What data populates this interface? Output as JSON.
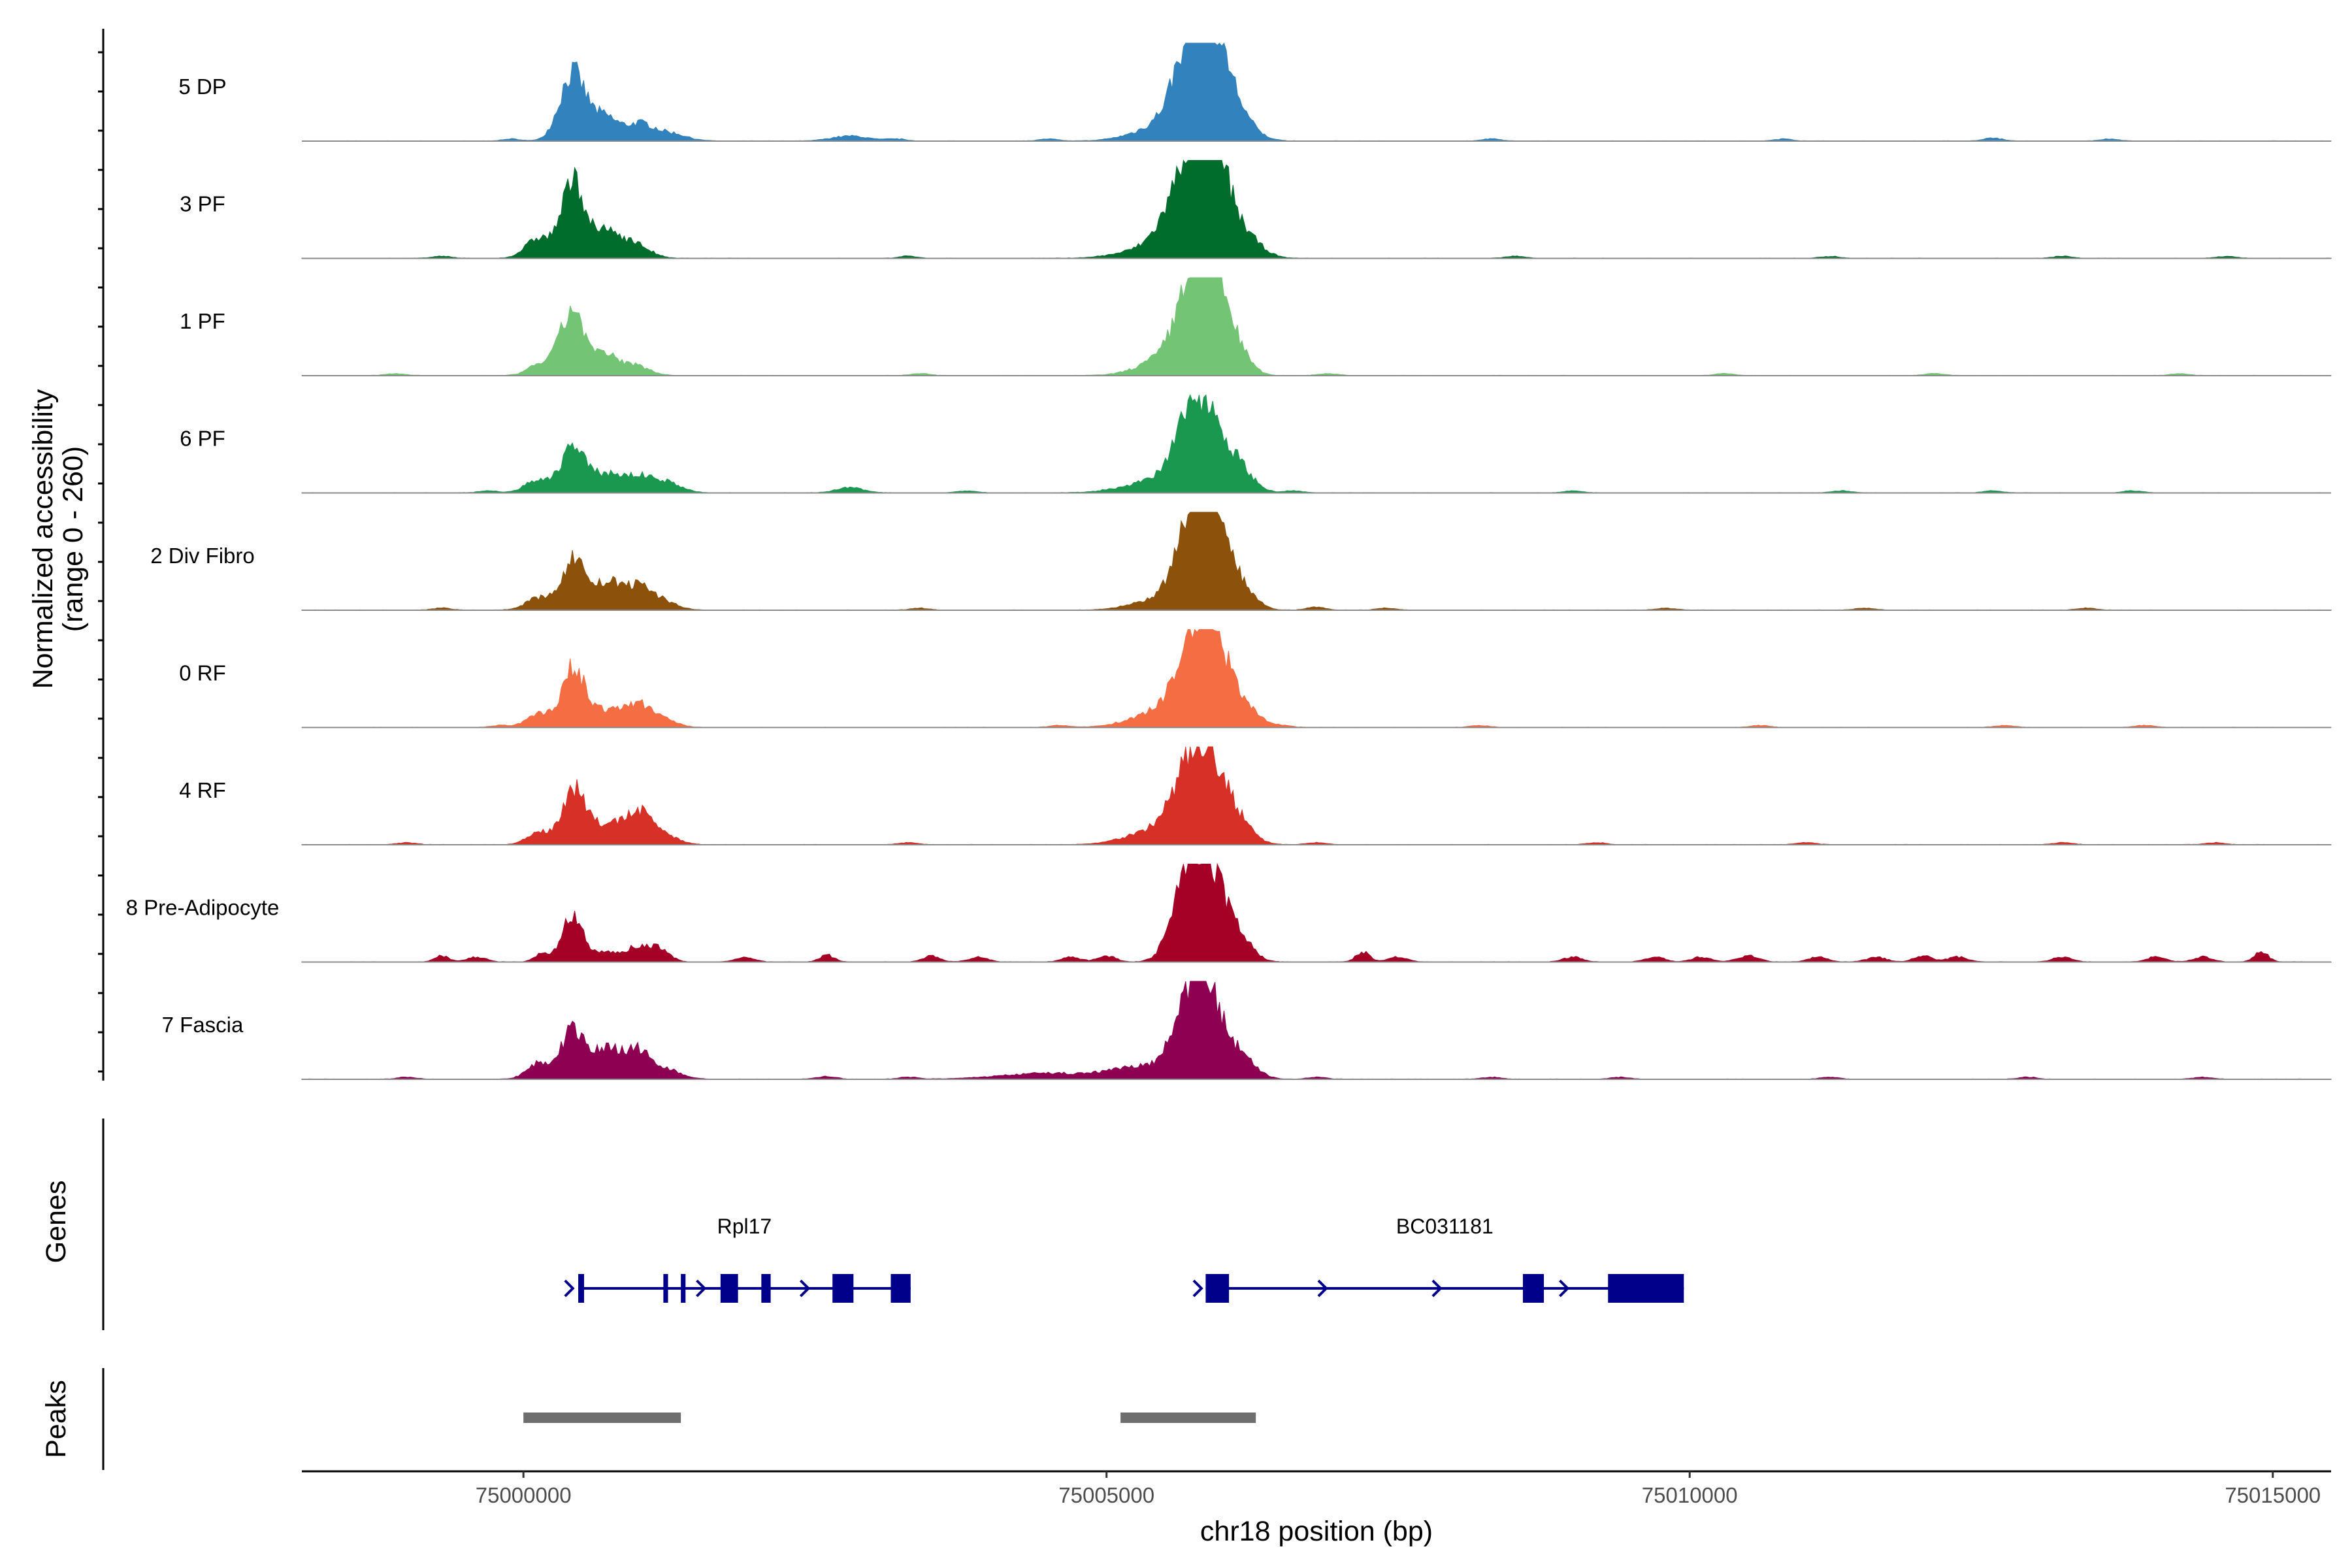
{
  "chart_data": {
    "type": "area",
    "title": "",
    "xlabel": "chr18 position (bp)",
    "ylabel_line1": "Normalized accessibility",
    "ylabel_line2": "(range 0 - 260)",
    "y_range": [
      0,
      260
    ],
    "xlim": [
      74998100,
      75015500
    ],
    "x_ticks": [
      75000000,
      75005000,
      75010000,
      75015000
    ],
    "x_tick_labels": [
      "75000000",
      "75005000",
      "75010000",
      "75015000"
    ],
    "tracks": [
      {
        "name": "5 DP",
        "color": "#3182bd",
        "peaks": [
          [
            75000420,
            0.68,
            110
          ],
          [
            75000700,
            0.24,
            120
          ],
          [
            75001000,
            0.16,
            110
          ],
          [
            75001250,
            0.08,
            140
          ],
          [
            75002800,
            0.05,
            160
          ],
          [
            75005500,
            0.15,
            250
          ],
          [
            75005760,
            0.95,
            160
          ],
          [
            75005920,
            0.62,
            150
          ],
          [
            75006120,
            0.18,
            150
          ]
        ],
        "noise": [
          [
            74999900,
            0.02
          ],
          [
            75003200,
            0.02
          ],
          [
            75004500,
            0.02
          ],
          [
            75008300,
            0.02
          ],
          [
            75010800,
            0.02
          ],
          [
            75012600,
            0.03
          ],
          [
            75013600,
            0.02
          ]
        ]
      },
      {
        "name": "3 PF",
        "color": "#006d2c",
        "peaks": [
          [
            75000130,
            0.2,
            110
          ],
          [
            75000430,
            0.78,
            100
          ],
          [
            75000720,
            0.26,
            110
          ],
          [
            75000960,
            0.14,
            120
          ],
          [
            75005400,
            0.1,
            260
          ],
          [
            75005680,
            0.68,
            170
          ],
          [
            75005850,
            0.88,
            130
          ],
          [
            75006000,
            0.4,
            130
          ],
          [
            75006220,
            0.16,
            130
          ]
        ],
        "noise": [
          [
            74999300,
            0.02
          ],
          [
            75003300,
            0.02
          ],
          [
            75008500,
            0.02
          ],
          [
            75011200,
            0.02
          ],
          [
            75013200,
            0.02
          ],
          [
            75014600,
            0.02
          ]
        ]
      },
      {
        "name": "1 PF",
        "color": "#74c476",
        "peaks": [
          [
            75000160,
            0.12,
            110
          ],
          [
            75000420,
            0.66,
            100
          ],
          [
            75000700,
            0.2,
            110
          ],
          [
            75000960,
            0.1,
            120
          ],
          [
            75005520,
            0.18,
            220
          ],
          [
            75005760,
            0.86,
            140
          ],
          [
            75005900,
            0.72,
            130
          ],
          [
            75006100,
            0.24,
            120
          ]
        ],
        "noise": [
          [
            74998900,
            0.02
          ],
          [
            75003400,
            0.02
          ],
          [
            75006900,
            0.02
          ],
          [
            75010300,
            0.02
          ],
          [
            75012100,
            0.02
          ],
          [
            75014200,
            0.02
          ]
        ]
      },
      {
        "name": "6 PF",
        "color": "#1a9850",
        "peaks": [
          [
            75000120,
            0.12,
            110
          ],
          [
            75000420,
            0.46,
            100
          ],
          [
            75000700,
            0.18,
            130
          ],
          [
            75001000,
            0.16,
            140
          ],
          [
            75001250,
            0.08,
            120
          ],
          [
            75002800,
            0.05,
            120
          ],
          [
            75005420,
            0.12,
            260
          ],
          [
            75005720,
            0.62,
            140
          ],
          [
            75005900,
            0.58,
            140
          ],
          [
            75006150,
            0.2,
            120
          ]
        ],
        "noise": [
          [
            74999700,
            0.02
          ],
          [
            75003800,
            0.02
          ],
          [
            75006600,
            0.02
          ],
          [
            75009000,
            0.02
          ],
          [
            75011300,
            0.02
          ],
          [
            75012600,
            0.02
          ],
          [
            75013800,
            0.02
          ]
        ]
      },
      {
        "name": "2 Div Fibro",
        "color": "#8c510a",
        "peaks": [
          [
            75000130,
            0.12,
            110
          ],
          [
            75000430,
            0.52,
            100
          ],
          [
            75000720,
            0.26,
            120
          ],
          [
            75000980,
            0.22,
            120
          ],
          [
            75001200,
            0.08,
            120
          ],
          [
            75005500,
            0.12,
            240
          ],
          [
            75005750,
            0.82,
            140
          ],
          [
            75005920,
            0.86,
            120
          ],
          [
            75006150,
            0.22,
            120
          ]
        ],
        "noise": [
          [
            74999300,
            0.02
          ],
          [
            75003400,
            0.02
          ],
          [
            75006800,
            0.03
          ],
          [
            75007400,
            0.02
          ],
          [
            75009800,
            0.02
          ],
          [
            75011500,
            0.02
          ],
          [
            75013400,
            0.02
          ]
        ]
      },
      {
        "name": "0 RF",
        "color": "#f46d43",
        "peaks": [
          [
            75000130,
            0.14,
            100
          ],
          [
            75000430,
            0.6,
            100
          ],
          [
            75000720,
            0.16,
            130
          ],
          [
            75000980,
            0.22,
            110
          ],
          [
            75001200,
            0.08,
            110
          ],
          [
            75005480,
            0.16,
            250
          ],
          [
            75005760,
            0.74,
            150
          ],
          [
            75005920,
            0.62,
            140
          ],
          [
            75006180,
            0.2,
            120
          ]
        ],
        "noise": [
          [
            74999800,
            0.02
          ],
          [
            75004600,
            0.02
          ],
          [
            75006500,
            0.02
          ],
          [
            75008200,
            0.02
          ],
          [
            75010600,
            0.02
          ],
          [
            75012700,
            0.02
          ],
          [
            75013900,
            0.02
          ]
        ]
      },
      {
        "name": "4 RF",
        "color": "#d73027",
        "peaks": [
          [
            75000130,
            0.12,
            100
          ],
          [
            75000430,
            0.56,
            100
          ],
          [
            75000720,
            0.2,
            130
          ],
          [
            75000990,
            0.3,
            110
          ],
          [
            75001200,
            0.1,
            120
          ],
          [
            75005450,
            0.16,
            250
          ],
          [
            75005720,
            0.72,
            140
          ],
          [
            75005920,
            0.62,
            130
          ],
          [
            75006150,
            0.18,
            120
          ]
        ],
        "noise": [
          [
            74999000,
            0.02
          ],
          [
            75003300,
            0.02
          ],
          [
            75006800,
            0.02
          ],
          [
            75009200,
            0.02
          ],
          [
            75011000,
            0.02
          ],
          [
            75013200,
            0.02
          ],
          [
            75014500,
            0.02
          ]
        ]
      },
      {
        "name": "8 Pre-Adipocyte",
        "color": "#a50026",
        "peaks": [
          [
            74999300,
            0.06,
            60
          ],
          [
            75000150,
            0.08,
            60
          ],
          [
            75000420,
            0.5,
            90
          ],
          [
            75000700,
            0.1,
            80
          ],
          [
            75000980,
            0.16,
            110
          ],
          [
            75001180,
            0.12,
            80
          ],
          [
            75002600,
            0.07,
            60
          ],
          [
            75003500,
            0.06,
            70
          ],
          [
            75005000,
            0.06,
            80
          ],
          [
            75005700,
            0.92,
            130
          ],
          [
            75005900,
            0.68,
            130
          ],
          [
            75006120,
            0.24,
            120
          ],
          [
            75007200,
            0.1,
            60
          ],
          [
            75010500,
            0.06,
            90
          ],
          [
            75012000,
            0.06,
            80
          ],
          [
            75014900,
            0.1,
            60
          ]
        ],
        "noise": [
          [
            74999600,
            0.05
          ],
          [
            75001900,
            0.05
          ],
          [
            75003900,
            0.05
          ],
          [
            75004700,
            0.05
          ],
          [
            75007500,
            0.05
          ],
          [
            75009000,
            0.05
          ],
          [
            75009700,
            0.05
          ],
          [
            75010100,
            0.05
          ],
          [
            75011100,
            0.05
          ],
          [
            75011600,
            0.05
          ],
          [
            75012300,
            0.05
          ],
          [
            75013200,
            0.05
          ],
          [
            75014000,
            0.05
          ],
          [
            75014400,
            0.05
          ]
        ]
      },
      {
        "name": "7 Fascia",
        "color": "#8e0152",
        "peaks": [
          [
            75000130,
            0.16,
            100
          ],
          [
            75000420,
            0.48,
            100
          ],
          [
            75000700,
            0.28,
            130
          ],
          [
            75000980,
            0.28,
            120
          ],
          [
            75001250,
            0.08,
            120
          ],
          [
            75004500,
            0.06,
            400
          ],
          [
            75005300,
            0.12,
            250
          ],
          [
            75005720,
            0.78,
            140
          ],
          [
            75005900,
            0.56,
            130
          ],
          [
            75006150,
            0.2,
            130
          ]
        ],
        "noise": [
          [
            74999000,
            0.02
          ],
          [
            75002600,
            0.03
          ],
          [
            75003300,
            0.02
          ],
          [
            75006800,
            0.02
          ],
          [
            75008300,
            0.02
          ],
          [
            75009400,
            0.02
          ],
          [
            75011200,
            0.02
          ],
          [
            75012900,
            0.02
          ],
          [
            75014400,
            0.02
          ]
        ]
      }
    ],
    "genes_panel_label": "Genes",
    "peaks_panel_label": "Peaks",
    "genes": [
      {
        "name": "Rpl17",
        "color": "#00008b",
        "start": 75000470,
        "end": 75003320,
        "exons": [
          [
            75000470,
            75000520
          ],
          [
            75001200,
            75001240
          ],
          [
            75001350,
            75001390
          ],
          [
            75001690,
            75001840
          ],
          [
            75002040,
            75002120
          ],
          [
            75002650,
            75002830
          ],
          [
            75003150,
            75003320
          ]
        ],
        "arrows": [
          75000390,
          75001520,
          75002410
        ]
      },
      {
        "name": "BC031181",
        "color": "#00008b",
        "start": 75005850,
        "end": 75009950,
        "exons": [
          [
            75005850,
            75006050
          ],
          [
            75008570,
            75008750
          ],
          [
            75009300,
            75009950
          ]
        ],
        "arrows": [
          75005780,
          75006850,
          75007830,
          75008920
        ]
      }
    ],
    "peak_regions": [
      [
        75000000,
        75001350
      ],
      [
        75005120,
        75006280
      ]
    ],
    "peak_color": "#6e6e6e"
  }
}
